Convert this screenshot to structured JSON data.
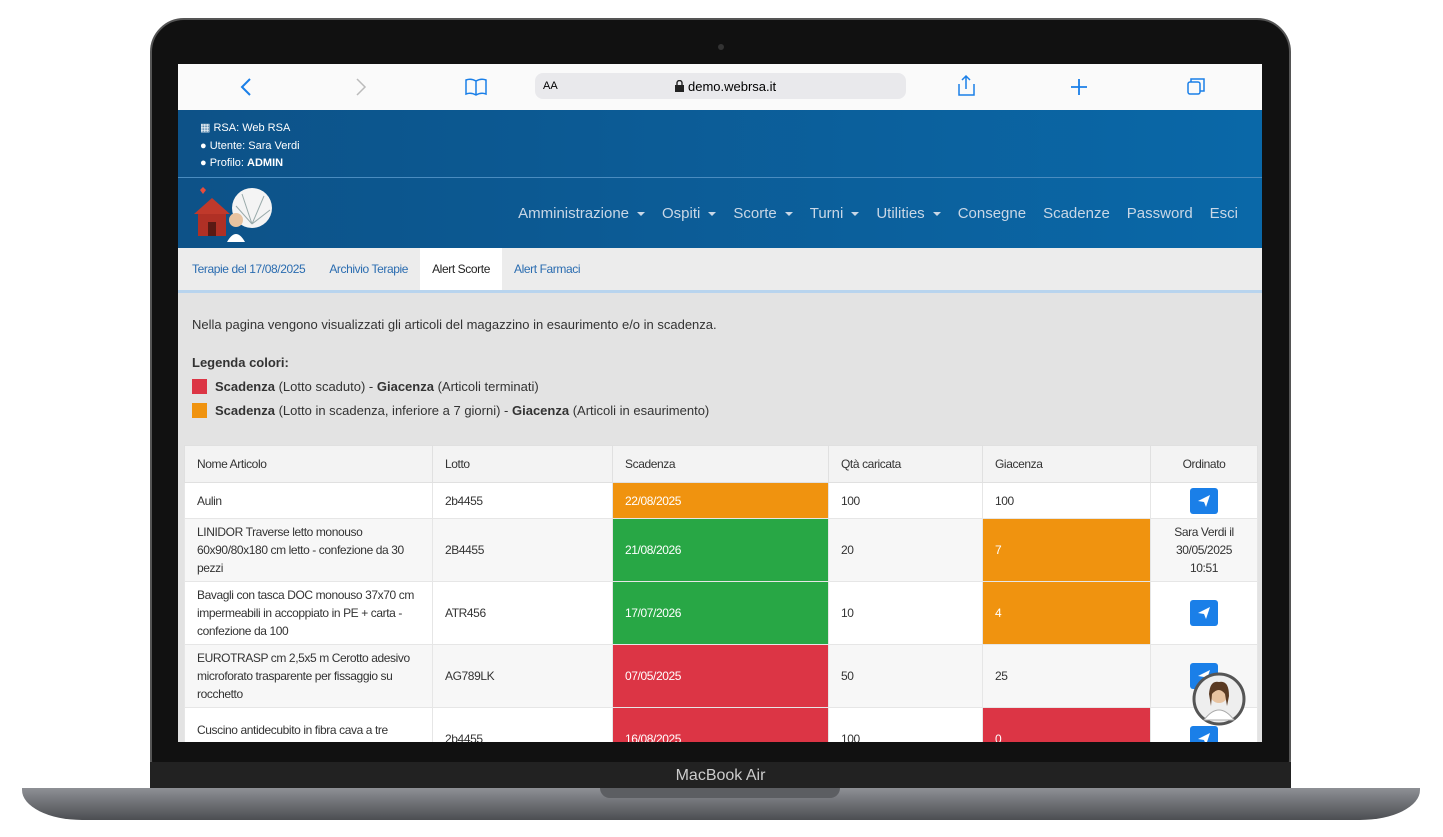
{
  "browser": {
    "text_size": "AA",
    "url": "demo.webrsa.it"
  },
  "header": {
    "rsa_label": "RSA:",
    "rsa": "Web RSA",
    "user_label": "Utente:",
    "user": "Sara Verdi",
    "profile_label": "Profilo:",
    "profile": "ADMIN"
  },
  "nav": {
    "items": [
      {
        "label": "Amministrazione",
        "dropdown": true
      },
      {
        "label": "Ospiti",
        "dropdown": true
      },
      {
        "label": "Scorte",
        "dropdown": true
      },
      {
        "label": "Turni",
        "dropdown": true
      },
      {
        "label": "Utilities",
        "dropdown": true
      },
      {
        "label": "Consegne",
        "dropdown": false
      },
      {
        "label": "Scadenze",
        "dropdown": false
      },
      {
        "label": "Password",
        "dropdown": false
      },
      {
        "label": "Esci",
        "dropdown": false
      }
    ]
  },
  "tabs": {
    "items": [
      "Terapie del 17/08/2025",
      "Archivio Terapie",
      "Alert Scorte",
      "Alert Farmaci"
    ],
    "active": 2
  },
  "intro": "Nella pagina vengono visualizzati gli articoli del magazzino in esaurimento e/o in scadenza.",
  "legend": {
    "title": "Legenda colori:",
    "items": [
      {
        "color": "#dc3545",
        "parts": [
          {
            "text": "Scadenza",
            "bold": true
          },
          {
            "text": " (Lotto scaduto) - ",
            "bold": false
          },
          {
            "text": "Giacenza",
            "bold": true
          },
          {
            "text": " (Articoli terminati)",
            "bold": false
          }
        ]
      },
      {
        "color": "#f0930f",
        "parts": [
          {
            "text": "Scadenza",
            "bold": true
          },
          {
            "text": " (Lotto in scadenza, inferiore a 7 giorni) - ",
            "bold": false
          },
          {
            "text": "Giacenza",
            "bold": true
          },
          {
            "text": " (Articoli in esaurimento)",
            "bold": false
          }
        ]
      }
    ]
  },
  "table": {
    "columns": [
      "Nome Articolo",
      "Lotto",
      "Scadenza",
      "Qtà caricata",
      "Giacenza",
      "Ordinato"
    ],
    "rows": [
      {
        "name": "Aulin",
        "lotto": "2b4455",
        "scadenza": "22/08/2025",
        "scadenza_color": "#f0930f",
        "qty": 100,
        "giacenza": 100
      },
      {
        "name": "LINIDOR Traverse letto monouso 60x90/80x180 cm letto - confezione da 30 pezzi",
        "lotto": "2B4455",
        "scadenza": "21/08/2026",
        "scadenza_color": "#28a745",
        "qty": 20,
        "giacenza": 7,
        "giacenza_color": "#f0930f",
        "ordinato": "Sara Verdi il 30/05/2025 10:51"
      },
      {
        "name": "Bavagli con tasca DOC monouso 37x70 cm impermeabili in accoppiato in PE + carta - confezione da 100",
        "lotto": "ATR456",
        "scadenza": "17/07/2026",
        "scadenza_color": "#28a745",
        "qty": 10,
        "giacenza": 4,
        "giacenza_color": "#f0930f"
      },
      {
        "name": "EUROTRASP cm 2,5x5 m Cerotto adesivo microforato trasparente per fissaggio su rocchetto",
        "lotto": "AG789LK",
        "scadenza": "07/05/2025",
        "scadenza_color": "#dc3545",
        "qty": 50,
        "giacenza": 25
      },
      {
        "name": "Cuscino antidecubito in fibra cava a tre sezioni",
        "lotto": "2b4455",
        "scadenza": "16/08/2025",
        "scadenza_color": "#dc3545",
        "qty": 100,
        "giacenza": 0,
        "giacenza_color": "#dc3545"
      }
    ]
  },
  "device_label": "MacBook Air"
}
